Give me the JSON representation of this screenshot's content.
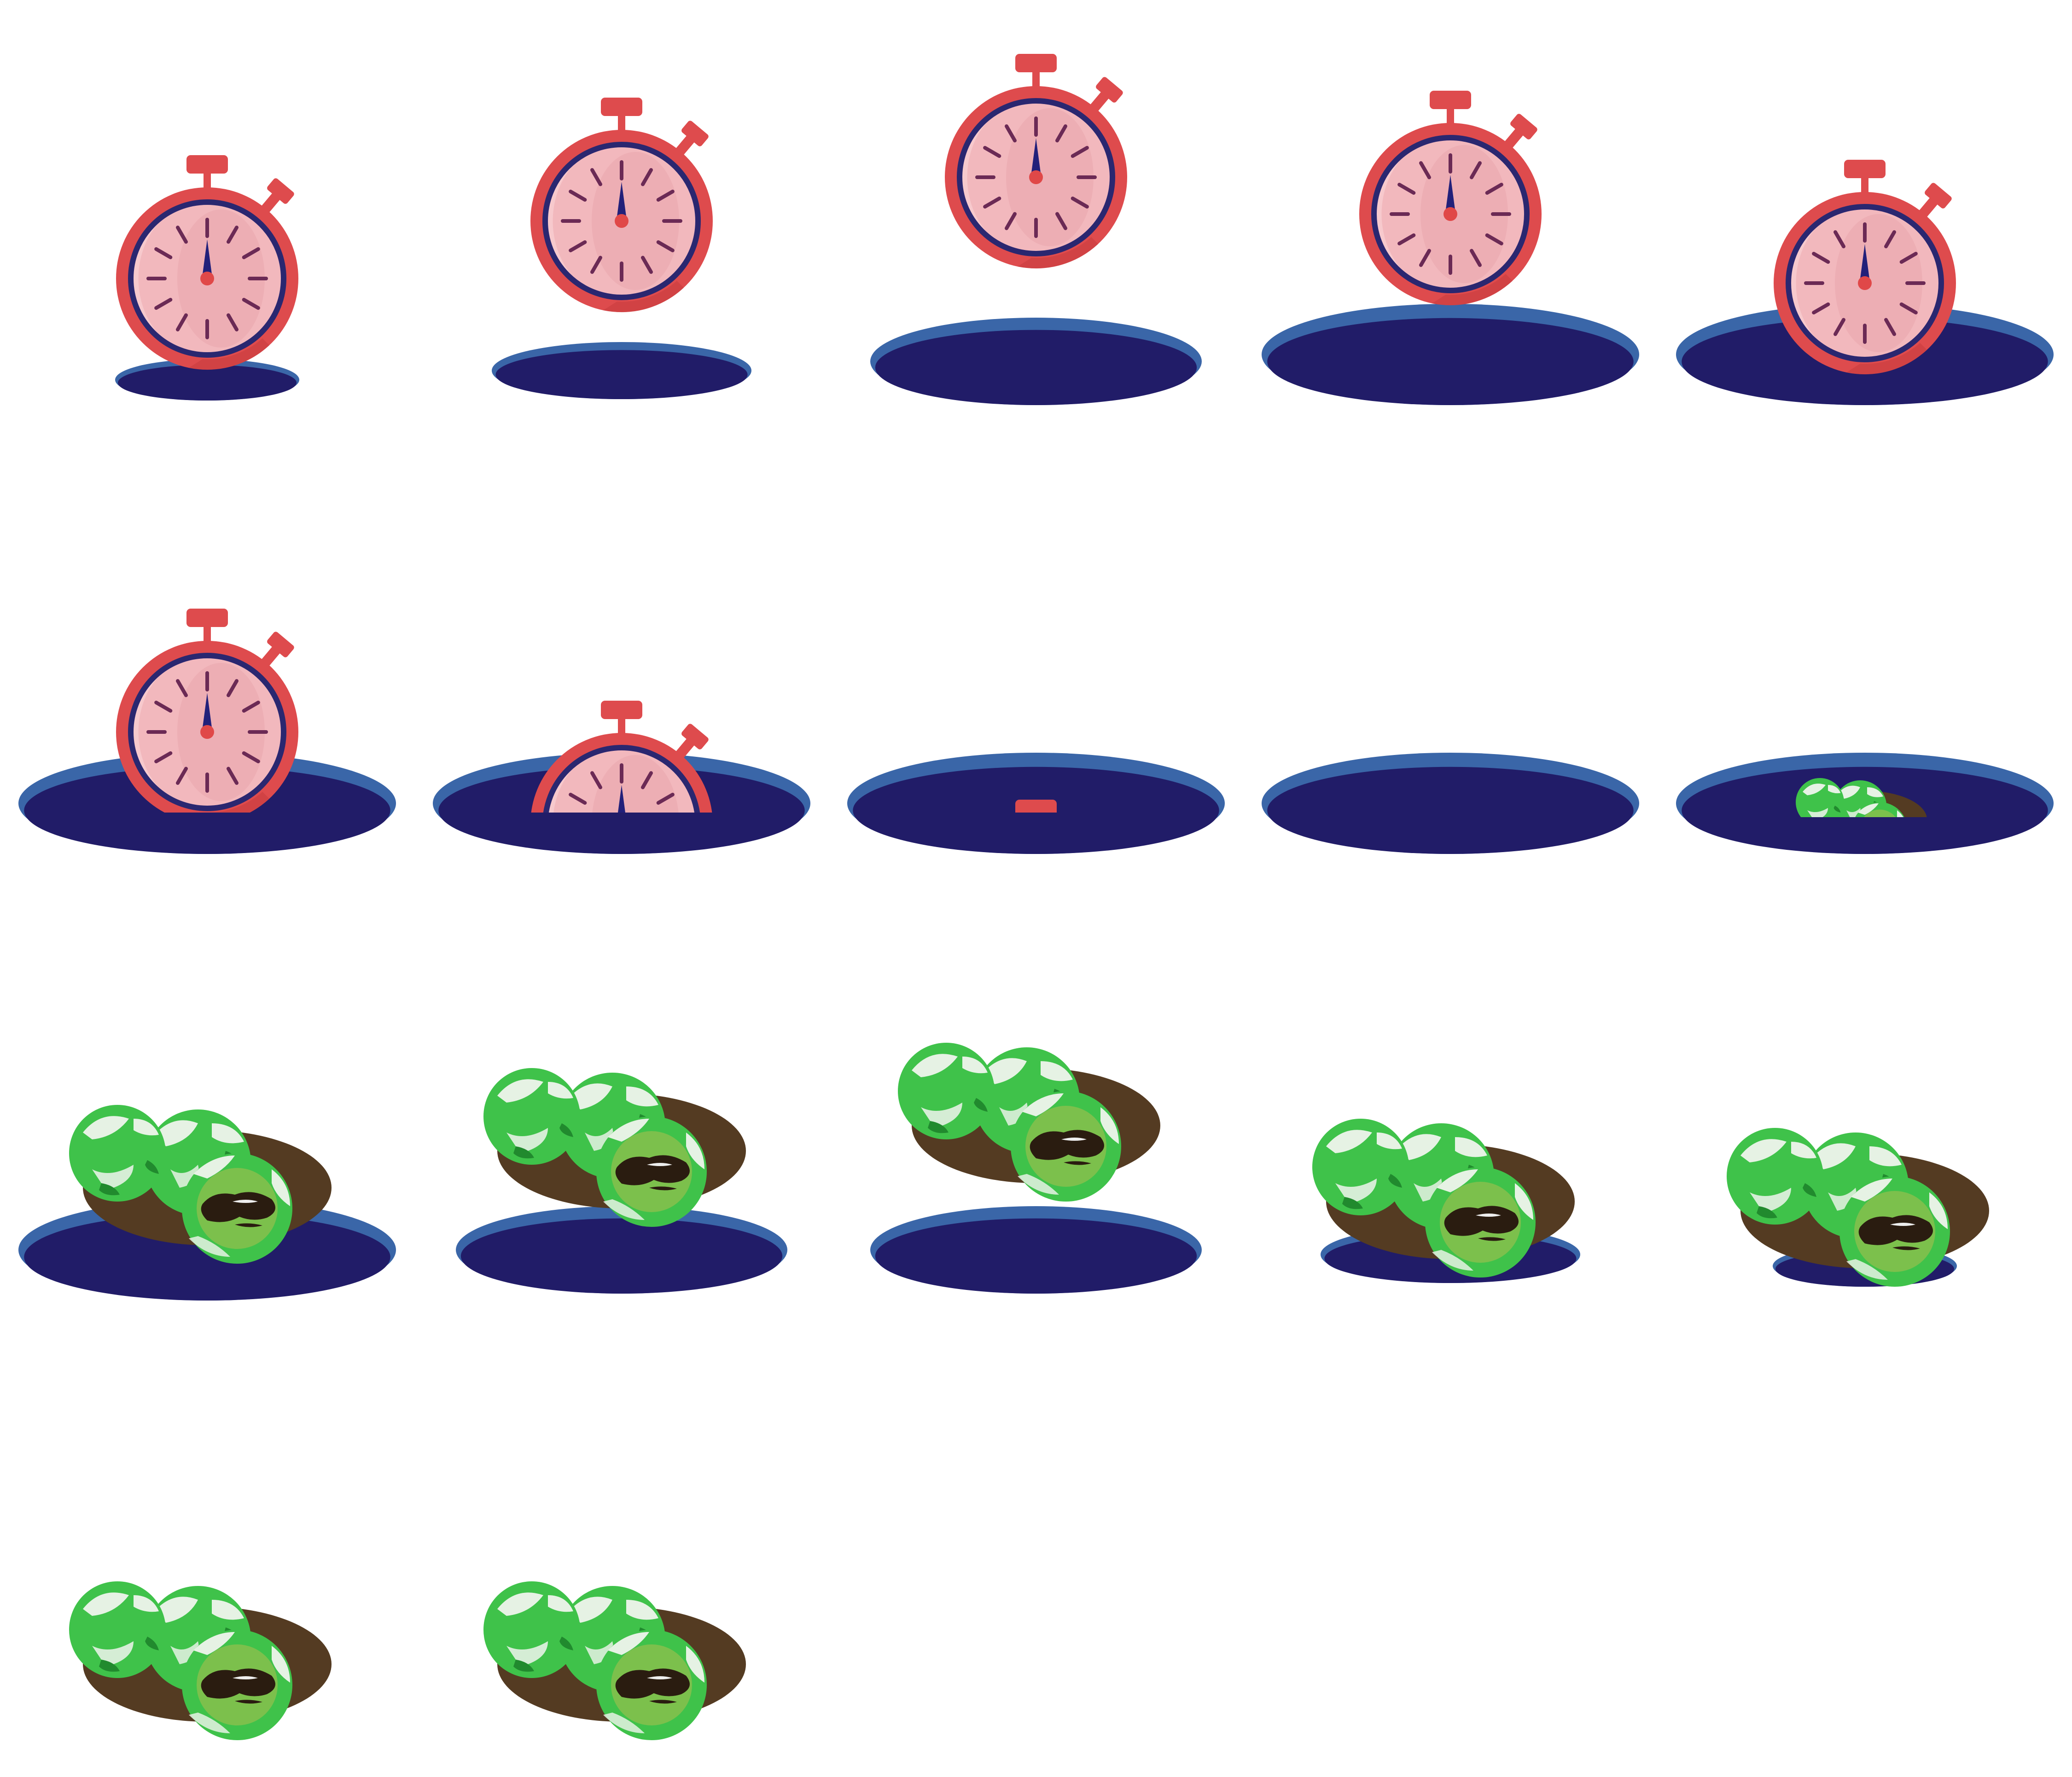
{
  "sprite_sheet": {
    "frame_count": 17,
    "columns": 5,
    "colors": {
      "background": "#ffffff",
      "hole_rim": "#3a66a8",
      "hole_inner": "#211c68",
      "watch_case": "#de4b4d",
      "watch_face": "#f2b8bd",
      "watch_face_shade": "#eaa6ad",
      "watch_ring": "#2a2770",
      "watch_ticks": "#6b2a55",
      "watch_hand": "#22207a",
      "watch_pin": "#e04848",
      "plate": "#543b22",
      "mochi_green": "#3fc24a",
      "mochi_highlight": "#e6f2e4",
      "mochi_dark": "#218a2e",
      "mochi_center": "#7cc04c",
      "filling": "#2a1c10"
    },
    "frames": [
      {
        "subject": "stopwatch",
        "state": "sinking"
      },
      {
        "subject": "stopwatch",
        "state": "rising"
      },
      {
        "subject": "stopwatch",
        "state": "airborne"
      },
      {
        "subject": "stopwatch",
        "state": "landing"
      },
      {
        "subject": "stopwatch",
        "state": "in-hole"
      },
      {
        "subject": "stopwatch",
        "state": "sinking"
      },
      {
        "subject": "stopwatch",
        "state": "sinking"
      },
      {
        "subject": "stopwatch",
        "state": "almost-gone"
      },
      {
        "subject": "mochi-plate",
        "state": "emerging"
      },
      {
        "subject": "mochi-plate",
        "state": "emerging"
      },
      {
        "subject": "mochi-plate",
        "state": "rising"
      },
      {
        "subject": "mochi-plate",
        "state": "rising"
      },
      {
        "subject": "mochi-plate",
        "state": "airborne"
      },
      {
        "subject": "mochi-plate",
        "state": "landing"
      },
      {
        "subject": "mochi-plate",
        "state": "landed"
      },
      {
        "subject": "mochi-plate",
        "state": "idle"
      },
      {
        "subject": "mochi-plate",
        "state": "idle"
      }
    ]
  }
}
